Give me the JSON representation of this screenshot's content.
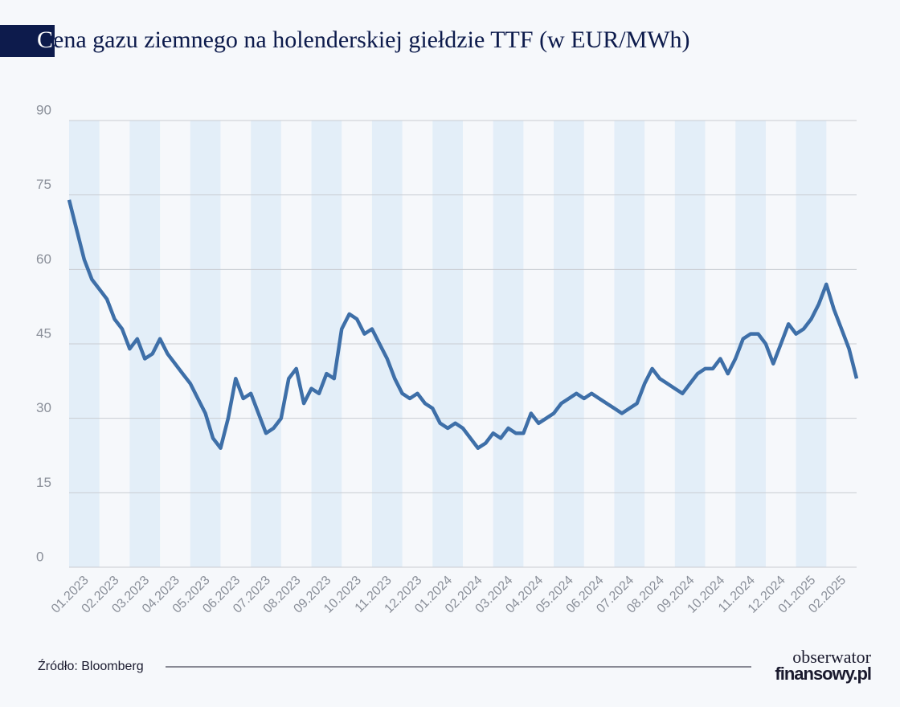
{
  "chart_data": {
    "type": "line",
    "title": "Cena gazu ziemnego na holenderskiej giełdzie TTF (w EUR/MWh)",
    "source": "Źródło: Bloomberg",
    "logo": [
      "obserwator",
      "finansowy.pl"
    ],
    "categories": [
      "01.2023",
      null,
      null,
      null,
      "02.2023",
      null,
      null,
      null,
      "03.2023",
      null,
      null,
      null,
      "04.2023",
      null,
      null,
      null,
      "05.2023",
      null,
      null,
      null,
      "06.2023",
      null,
      null,
      null,
      "07.2023",
      null,
      null,
      null,
      "08.2023",
      null,
      null,
      null,
      "09.2023",
      null,
      null,
      null,
      "10.2023",
      null,
      null,
      null,
      "11.2023",
      null,
      null,
      null,
      "12.2023",
      null,
      null,
      null,
      "01.2024",
      null,
      null,
      null,
      "02.2024",
      null,
      null,
      null,
      "03.2024",
      null,
      null,
      null,
      "04.2024",
      null,
      null,
      null,
      "05.2024",
      null,
      null,
      null,
      "06.2024",
      null,
      null,
      null,
      "07.2024",
      null,
      null,
      null,
      "08.2024",
      null,
      null,
      null,
      "09.2024",
      null,
      null,
      null,
      "10.2024",
      null,
      null,
      null,
      "11.2024",
      null,
      null,
      null,
      "12.2024",
      null,
      null,
      null,
      "01.2025",
      null,
      null,
      null,
      "02.2025",
      null,
      null,
      null,
      null
    ],
    "series": [
      {
        "name": "TTF",
        "color": "#3e6fa8",
        "values": [
          74,
          68,
          62,
          58,
          56,
          54,
          50,
          48,
          44,
          46,
          42,
          43,
          46,
          43,
          41,
          39,
          37,
          34,
          31,
          26,
          24,
          30,
          38,
          34,
          35,
          31,
          27,
          28,
          30,
          38,
          40,
          33,
          36,
          35,
          39,
          38,
          48,
          51,
          50,
          47,
          48,
          45,
          42,
          38,
          35,
          34,
          35,
          33,
          32,
          29,
          28,
          29,
          28,
          26,
          24,
          25,
          27,
          26,
          28,
          27,
          27,
          31,
          29,
          30,
          31,
          33,
          34,
          35,
          34,
          35,
          34,
          33,
          32,
          31,
          32,
          33,
          37,
          40,
          38,
          37,
          36,
          35,
          37,
          39,
          40,
          40,
          42,
          39,
          42,
          46,
          47,
          47,
          45,
          41,
          45,
          49,
          47,
          48,
          50,
          53,
          57,
          52,
          48,
          44,
          38
        ]
      }
    ],
    "ylim": [
      0,
      90
    ],
    "yticks": [
      0,
      15,
      30,
      45,
      60,
      75,
      90
    ],
    "grid": true
  }
}
